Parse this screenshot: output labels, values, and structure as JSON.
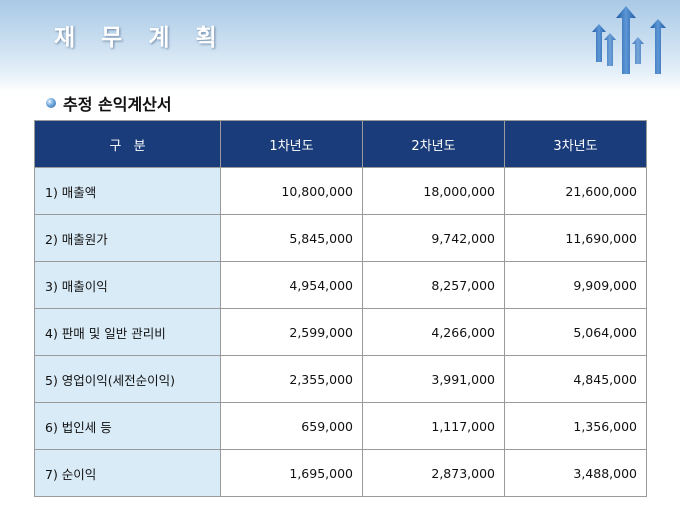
{
  "slide": {
    "title": "재 무 계 획"
  },
  "section": {
    "title": "추정 손익계산서"
  },
  "colors": {
    "header_bg": "#1a3c7a",
    "label_bg": "#d9ebf7",
    "title_band": "#aac9e6",
    "arrow_color": "#2f6bb3"
  },
  "icons": [
    "rising-arrows-icon",
    "bullet-dot-icon"
  ],
  "table": {
    "headers": [
      "구   분",
      "1차년도",
      "2차년도",
      "3차년도"
    ],
    "rows": [
      {
        "label": "1) 매출액",
        "values": [
          "10,800,000",
          "18,000,000",
          "21,600,000"
        ]
      },
      {
        "label": "2) 매출원가",
        "values": [
          "5,845,000",
          "9,742,000",
          "11,690,000"
        ]
      },
      {
        "label": "3) 매출이익",
        "values": [
          "4,954,000",
          "8,257,000",
          "9,909,000"
        ]
      },
      {
        "label": "4) 판매 및 일반 관리비",
        "values": [
          "2,599,000",
          "4,266,000",
          "5,064,000"
        ]
      },
      {
        "label": "5) 영업이익(세전순이익)",
        "values": [
          "2,355,000",
          "3,991,000",
          "4,845,000"
        ]
      },
      {
        "label": "6) 법인세 등",
        "values": [
          "659,000",
          "1,117,000",
          "1,356,000"
        ]
      },
      {
        "label": "7) 순이익",
        "values": [
          "1,695,000",
          "2,873,000",
          "3,488,000"
        ]
      }
    ]
  }
}
